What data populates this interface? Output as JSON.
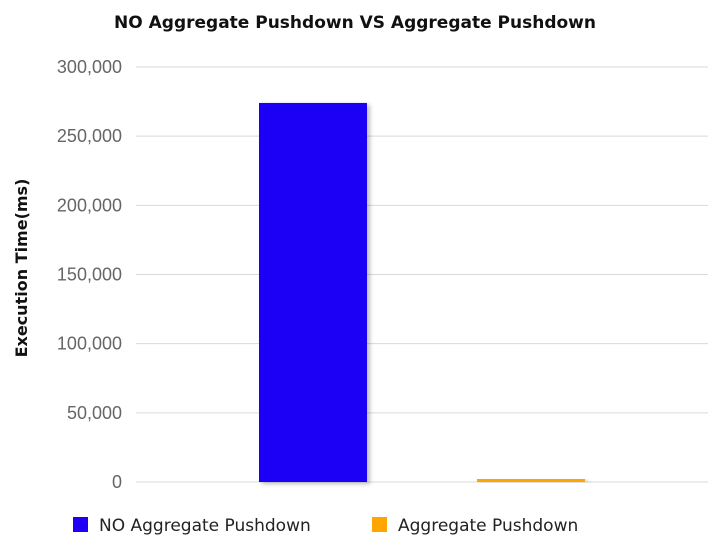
{
  "chart_data": {
    "type": "bar",
    "title": "NO Aggregate Pushdown VS Aggregate Pushdown",
    "xlabel": "",
    "ylabel": "Execution Time(ms)",
    "ylim": [
      0,
      300000
    ],
    "yticks": [
      "0",
      "50,000",
      "100,000",
      "150,000",
      "200,000",
      "250,000",
      "300,000"
    ],
    "ytick_values": [
      0,
      50000,
      100000,
      150000,
      200000,
      250000,
      300000
    ],
    "grid": true,
    "legend_position": "bottom",
    "series": [
      {
        "name": "NO Aggregate Pushdown",
        "values": [
          274000
        ],
        "color": "#1f00f5"
      },
      {
        "name": "Aggregate Pushdown",
        "values": [
          1800
        ],
        "color": "#ffa500"
      }
    ]
  }
}
